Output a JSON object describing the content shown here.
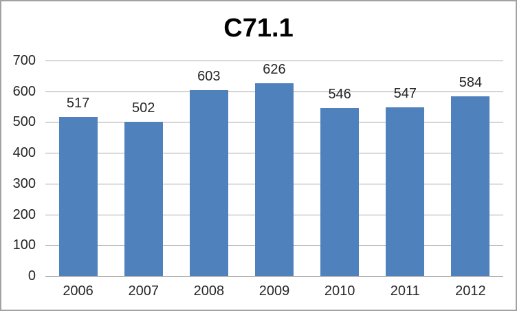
{
  "chart_data": {
    "type": "bar",
    "title": "C71.1",
    "categories": [
      "2006",
      "2007",
      "2008",
      "2009",
      "2010",
      "2011",
      "2012"
    ],
    "values": [
      517,
      502,
      603,
      626,
      546,
      547,
      584
    ],
    "data_labels_shown": true,
    "xlabel": "",
    "ylabel": "",
    "ylim": [
      0,
      700
    ],
    "yticks": [
      0,
      100,
      200,
      300,
      400,
      500,
      600,
      700
    ],
    "grid": "horizontal",
    "legend": "none"
  },
  "colors": {
    "bar": "#4F81BD",
    "gridline": "#A6A6A6",
    "axis_line": "#8C8C8C",
    "tick_text": "#262626",
    "title_text": "#000000",
    "frame_border": "#A2A2A2",
    "background": "#FFFFFF"
  }
}
